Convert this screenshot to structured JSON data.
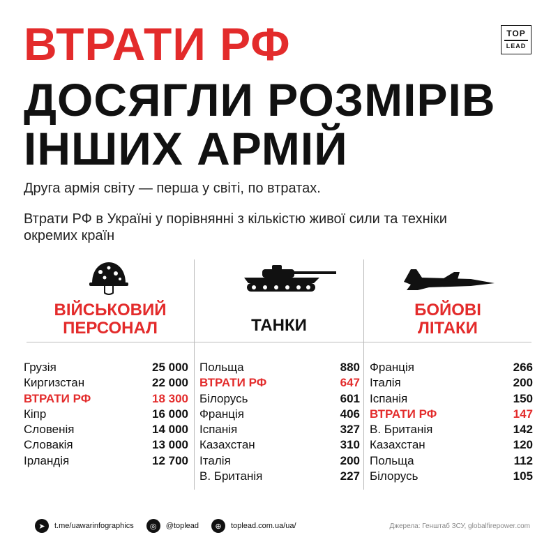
{
  "header": {
    "title_line1": "ВТРАТИ РФ",
    "title_line2": "ДОСЯГЛИ РОЗМІРІВ",
    "title_line3": "ІНШИХ АРМІЙ",
    "subtitle1": "Друга армія світу — перша у світі, по втратах.",
    "subtitle2": "Втрати РФ в Україні у порівнянні з кількістю живої сили та техніки окремих країн",
    "logo_top": "TOP",
    "logo_bottom": "LEAD"
  },
  "columns": [
    {
      "icon": "helmet-icon",
      "heading_line1": "ВІЙСЬКОВИЙ",
      "heading_line2": "ПЕРСОНАЛ",
      "rows": [
        {
          "country": "Грузія",
          "value": "25 000"
        },
        {
          "country": "Киргизстан",
          "value": "22 000"
        },
        {
          "country": "ВТРАТИ РФ",
          "value": "18 300"
        },
        {
          "country": "Кіпр",
          "value": "16 000"
        },
        {
          "country": "Словенія",
          "value": "14 000"
        },
        {
          "country": "Словакія",
          "value": "13 000"
        },
        {
          "country": "Ірландія",
          "value": "12 700"
        }
      ]
    },
    {
      "icon": "tank-icon",
      "heading_line1": "ТАНКИ",
      "heading_line2": "",
      "rows": [
        {
          "country": "Польща",
          "value": "880"
        },
        {
          "country": "ВТРАТИ РФ",
          "value": "647"
        },
        {
          "country": "Білорусь",
          "value": "601"
        },
        {
          "country": "Франція",
          "value": "406"
        },
        {
          "country": "Іспанія",
          "value": "327"
        },
        {
          "country": "Казахстан",
          "value": "310"
        },
        {
          "country": "Італія",
          "value": "200"
        },
        {
          "country": "В. Британія",
          "value": "227"
        }
      ]
    },
    {
      "icon": "fighter-jet-icon",
      "heading_line1": "БОЙОВІ",
      "heading_line2": "ЛІТАКИ",
      "rows": [
        {
          "country": "Франція",
          "value": "266"
        },
        {
          "country": "Італія",
          "value": "200"
        },
        {
          "country": "Іспанія",
          "value": "150"
        },
        {
          "country": "ВТРАТИ РФ",
          "value": "147"
        },
        {
          "country": "В. Британія",
          "value": "142"
        },
        {
          "country": "Казахстан",
          "value": "120"
        },
        {
          "country": "Польща",
          "value": "112"
        },
        {
          "country": "Білорусь",
          "value": "105"
        }
      ]
    }
  ],
  "highlight_label": "ВТРАТИ РФ",
  "colors": {
    "accent": "#e32b2b",
    "text": "#111111"
  },
  "footer": {
    "telegram": "t.me/uawarinfographics",
    "instagram": "@toplead",
    "website": "toplead.com.ua/ua/",
    "source": "Джерела: Генштаб ЗСУ, globalfirepower.com"
  }
}
